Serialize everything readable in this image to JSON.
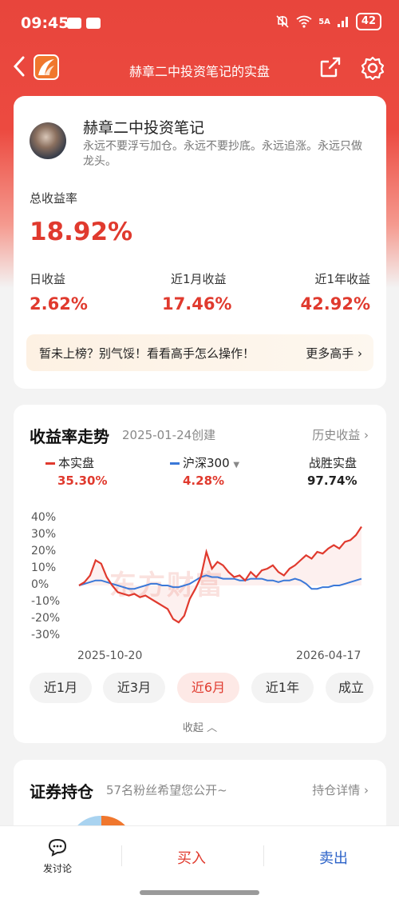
{
  "status": {
    "time": "09:45",
    "battery": "42",
    "net": "5A"
  },
  "nav": {
    "title": "赫章二中投资笔记的实盘"
  },
  "profile": {
    "name": "赫章二中投资笔记",
    "motto": "永远不要浮亏加仓。永远不要抄底。永远追涨。永远只做龙头。"
  },
  "stats": {
    "total_label": "总收益率",
    "total_value": "18.92%",
    "day_label": "日收益",
    "day_value": "2.62%",
    "month_label": "近1月收益",
    "month_value": "17.46%",
    "year_label": "近1年收益",
    "year_value": "42.92%"
  },
  "banner": {
    "text": "暂未上榜？别气馁！看看高手怎么操作！",
    "more": "更多高手"
  },
  "trend": {
    "title": "收益率走势",
    "created": "2025-01-24创建",
    "history": "历史收益",
    "legend": [
      {
        "name": "本实盘",
        "value": "35.30%",
        "color": "#e03a2e"
      },
      {
        "name": "沪深300",
        "value": "4.28%",
        "color": "#3a78d8"
      }
    ],
    "beat_label": "战胜实盘",
    "beat_value": "97.74%",
    "watermark": "东方财富",
    "tabs": [
      "近1月",
      "近3月",
      "近6月",
      "近1年",
      "成立"
    ],
    "active_tab": 2,
    "collapse": "收起"
  },
  "chart_data": {
    "type": "line",
    "yticks": [
      "40%",
      "30%",
      "20%",
      "10%",
      "0%",
      "-10%",
      "-20%",
      "-30%"
    ],
    "ylim": [
      -30,
      40
    ],
    "x_start": "2025-10-20",
    "x_end": "2026-04-17",
    "series": [
      {
        "name": "本实盘",
        "color": "#e03a2e",
        "values": [
          0,
          2,
          6,
          15,
          13,
          5,
          0,
          -4,
          -5,
          -6,
          -5,
          -7,
          -6,
          -8,
          -10,
          -12,
          -14,
          -20,
          -22,
          -18,
          -8,
          -2,
          5,
          20,
          10,
          14,
          12,
          8,
          5,
          6,
          3,
          8,
          5,
          9,
          10,
          12,
          8,
          6,
          10,
          12,
          15,
          18,
          16,
          20,
          19,
          22,
          24,
          22,
          26,
          27,
          30,
          35
        ]
      },
      {
        "name": "沪深300",
        "color": "#3a78d8",
        "values": [
          0,
          1,
          2,
          3,
          3,
          2,
          1,
          0,
          -1,
          -2,
          -2,
          -1,
          0,
          1,
          1,
          0,
          0,
          -1,
          -1,
          0,
          1,
          3,
          5,
          6,
          5,
          5,
          4,
          4,
          4,
          3,
          3,
          4,
          4,
          4,
          3,
          3,
          2,
          3,
          3,
          4,
          3,
          1,
          -2,
          -2,
          -1,
          -1,
          0,
          0,
          1,
          2,
          3,
          4
        ]
      }
    ]
  },
  "holdings": {
    "title": "证券持仓",
    "sub": "57名粉丝希望您公开~",
    "detail": "持仓详情"
  },
  "bottom": {
    "discuss": "发讨论",
    "buy": "买入",
    "sell": "卖出"
  }
}
